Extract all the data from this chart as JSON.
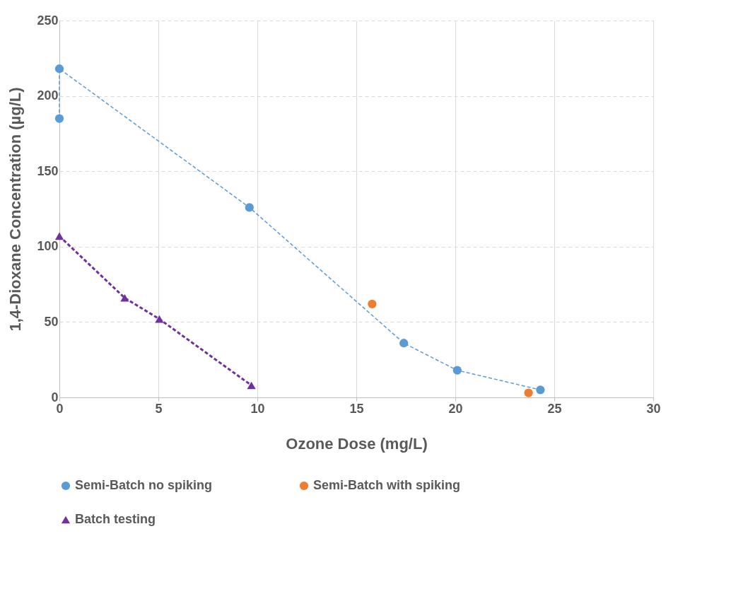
{
  "chart_data": {
    "type": "line",
    "xlabel": "Ozone Dose (mg/L)",
    "ylabel": "1,4-Dioxane Concentration (µg/L)",
    "xlim": [
      0,
      30
    ],
    "xticks": [
      0,
      5,
      10,
      15,
      20,
      25,
      30
    ],
    "ylim": [
      0,
      250
    ],
    "yticks": [
      0,
      50,
      100,
      150,
      200,
      250
    ],
    "grid": true,
    "legend": "bottom",
    "series": [
      {
        "name": "Semi-Batch no spiking",
        "color": "#5b9bd5",
        "marker": "circle",
        "line_style": "dashed",
        "x": [
          0,
          0,
          9.6,
          17.4,
          20.1,
          24.3
        ],
        "values": [
          185,
          218,
          126,
          36,
          18,
          5
        ]
      },
      {
        "name": "Semi-Batch with spiking",
        "type": "scatter",
        "color": "#ed7d31",
        "marker": "circle",
        "x": [
          15.8,
          23.7
        ],
        "values": [
          62,
          3
        ]
      },
      {
        "name": "Batch testing",
        "color": "#7030a0",
        "marker": "triangle",
        "line_style": "dashed",
        "x": [
          0,
          3.3,
          5.05,
          9.7
        ],
        "values": [
          107,
          66,
          52,
          8
        ]
      }
    ]
  }
}
